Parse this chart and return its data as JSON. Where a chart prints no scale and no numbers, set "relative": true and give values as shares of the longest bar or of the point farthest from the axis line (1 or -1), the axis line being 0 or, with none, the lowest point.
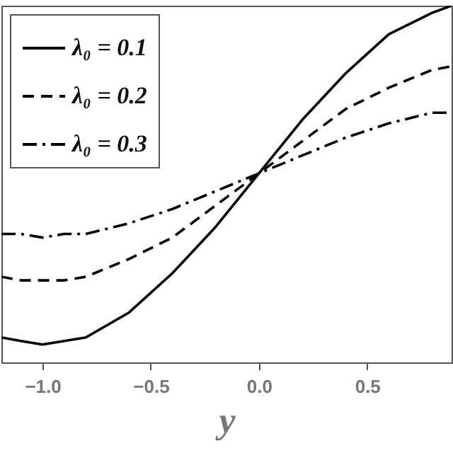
{
  "chart_data": {
    "type": "line",
    "xlabel": "y",
    "relative": true,
    "grid": false,
    "legend": "top left",
    "marker": "none",
    "x": [
      -1.19,
      -1.1,
      -1.0,
      -0.9,
      -0.8,
      -0.6,
      -0.4,
      -0.2,
      0,
      0.2,
      0.4,
      0.6,
      0.8,
      0.89
    ],
    "xlim": [
      -1.19,
      0.89
    ],
    "xticks": [
      {
        "value": -1,
        "label": "−1.0"
      },
      {
        "value": -0.5,
        "label": "−0.5"
      },
      {
        "value": 0,
        "label": "0.0"
      },
      {
        "value": 0.5,
        "label": "0.5"
      }
    ],
    "series": [
      {
        "name": "λ₀ = 0.1",
        "color": "#000000",
        "line_style": "solid",
        "values": [
          0.07,
          0.06,
          0.05,
          0.06,
          0.07,
          0.14,
          0.25,
          0.38,
          0.53,
          0.68,
          0.81,
          0.92,
          0.98,
          1.0
        ]
      },
      {
        "name": "λ₀ = 0.2",
        "color": "#000000",
        "line_style": "dashed",
        "values": [
          0.24,
          0.23,
          0.23,
          0.23,
          0.24,
          0.29,
          0.35,
          0.44,
          0.53,
          0.62,
          0.71,
          0.77,
          0.82,
          0.83
        ]
      },
      {
        "name": "λ₀ = 0.3",
        "color": "#000000",
        "line_style": "dashdot",
        "values": [
          0.36,
          0.36,
          0.35,
          0.36,
          0.36,
          0.39,
          0.43,
          0.48,
          0.53,
          0.58,
          0.63,
          0.67,
          0.7,
          0.7
        ]
      }
    ]
  }
}
